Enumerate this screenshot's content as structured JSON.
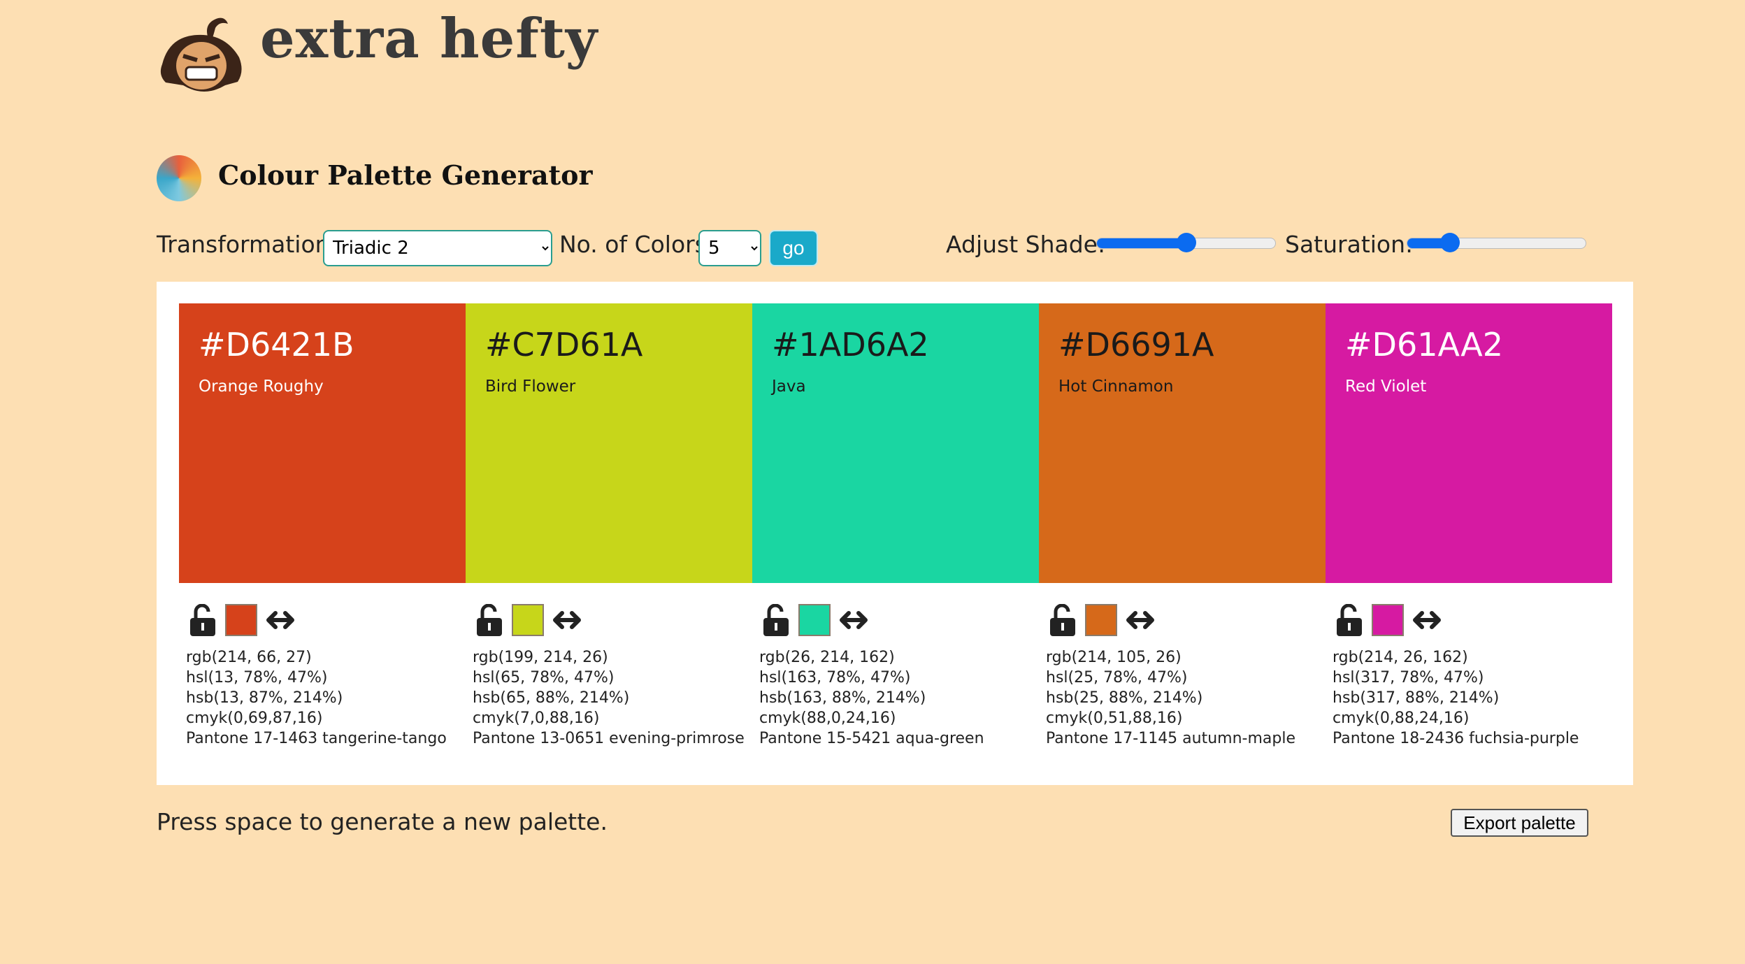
{
  "header": {
    "brand": "extra hefty",
    "app_title": "Colour Palette Generator"
  },
  "controls": {
    "transformation_label": "Transformation",
    "transformation_value": "Triadic 2",
    "count_label": "No. of Colors",
    "count_value": "5",
    "go_label": "go",
    "shade_label": "Adjust Shade:",
    "shade_level": 0.5,
    "saturation_label": "Saturation:",
    "saturation_level": 0.24,
    "accent": "#0B6BF0"
  },
  "palette": [
    {
      "hex": "#D6421B",
      "name": "Orange Roughy",
      "rgb": "rgb(214, 66, 27)",
      "hsl": "hsl(13, 78%, 47%)",
      "hsb": "hsb(13, 87%, 214%)",
      "cmyk": "cmyk(0,69,87,16)",
      "pantone": "Pantone 17-1463 tangerine-tango",
      "light": true
    },
    {
      "hex": "#C7D61A",
      "name": "Bird Flower",
      "rgb": "rgb(199, 214, 26)",
      "hsl": "hsl(65, 78%, 47%)",
      "hsb": "hsb(65, 88%, 214%)",
      "cmyk": "cmyk(7,0,88,16)",
      "pantone": "Pantone 13-0651 evening-primrose",
      "light": false
    },
    {
      "hex": "#1AD6A2",
      "name": "Java",
      "rgb": "rgb(26, 214, 162)",
      "hsl": "hsl(163, 78%, 47%)",
      "hsb": "hsb(163, 88%, 214%)",
      "cmyk": "cmyk(88,0,24,16)",
      "pantone": "Pantone 15-5421 aqua-green",
      "light": false
    },
    {
      "hex": "#D6691A",
      "name": "Hot Cinnamon",
      "rgb": "rgb(214, 105, 26)",
      "hsl": "hsl(25, 78%, 47%)",
      "hsb": "hsb(25, 88%, 214%)",
      "cmyk": "cmyk(0,51,88,16)",
      "pantone": "Pantone 17-1145 autumn-maple",
      "light": false
    },
    {
      "hex": "#D61AA2",
      "name": "Red Violet",
      "rgb": "rgb(214, 26, 162)",
      "hsl": "hsl(317, 78%, 47%)",
      "hsb": "hsb(317, 88%, 214%)",
      "cmyk": "cmyk(0,88,24,16)",
      "pantone": "Pantone 18-2436 fuchsia-purple",
      "light": true
    }
  ],
  "footer": {
    "hint": "Press space to generate a new palette.",
    "export_label": "Export palette"
  }
}
